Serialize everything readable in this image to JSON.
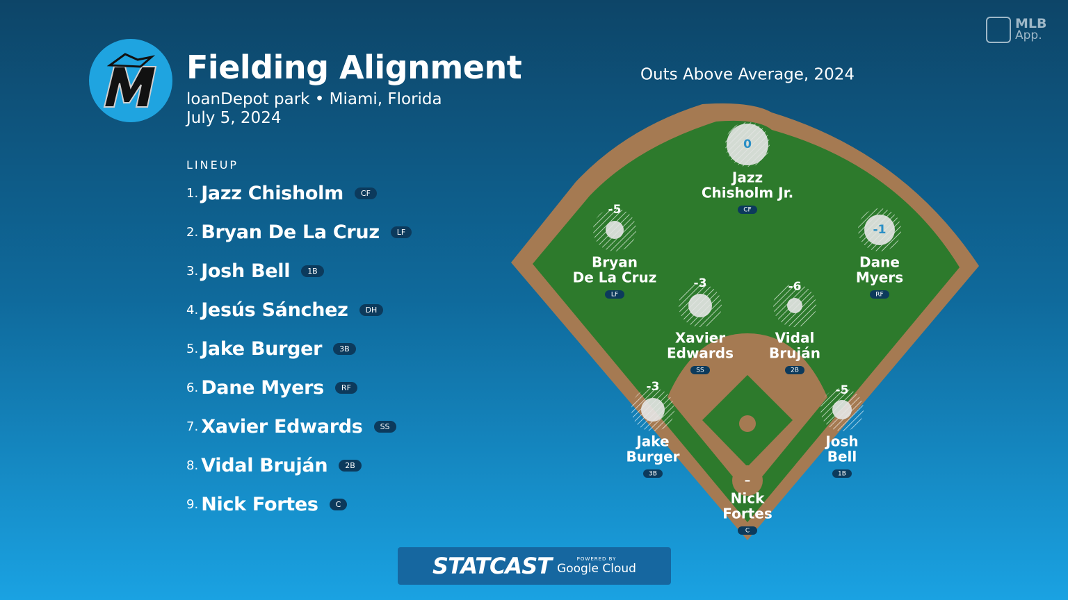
{
  "header": {
    "title": "Fielding Alignment",
    "venue": "loanDepot park • Miami, Florida",
    "date": "July 5, 2024"
  },
  "lineup": {
    "label": "LINEUP",
    "players": [
      {
        "number": "1.",
        "name": "Jazz Chisholm",
        "position": "CF"
      },
      {
        "number": "2.",
        "name": "Bryan De La Cruz",
        "position": "LF"
      },
      {
        "number": "3.",
        "name": "Josh Bell",
        "position": "1B"
      },
      {
        "number": "4.",
        "name": "Jesús Sánchez",
        "position": "DH"
      },
      {
        "number": "5.",
        "name": "Jake Burger",
        "position": "3B"
      },
      {
        "number": "6.",
        "name": "Dane Myers",
        "position": "RF"
      },
      {
        "number": "7.",
        "name": "Xavier Edwards",
        "position": "SS"
      },
      {
        "number": "8.",
        "name": "Vidal Bruján",
        "position": "2B"
      },
      {
        "number": "9.",
        "name": "Nick Fortes",
        "position": "C"
      }
    ]
  },
  "field": {
    "title": "Outs Above Average, 2024",
    "players": [
      {
        "value": "0",
        "name": [
          "Jazz",
          "Chisholm Jr."
        ],
        "position": "CF"
      },
      {
        "value": "-5",
        "name": [
          "Bryan",
          "De La Cruz"
        ],
        "position": "LF"
      },
      {
        "value": "-1",
        "name": [
          "Dane",
          "Myers"
        ],
        "position": "RF"
      },
      {
        "value": "-3",
        "name": [
          "Xavier",
          "Edwards"
        ],
        "position": "SS"
      },
      {
        "value": "-6",
        "name": [
          "Vidal",
          "Bruján"
        ],
        "position": "2B"
      },
      {
        "value": "-3",
        "name": [
          "Jake",
          "Burger"
        ],
        "position": "3B"
      },
      {
        "value": "-5",
        "name": [
          "Josh",
          "Bell"
        ],
        "position": "1B"
      },
      {
        "value": "–",
        "name": [
          "Nick",
          "Fortes"
        ],
        "position": "C"
      }
    ]
  },
  "branding": {
    "app": [
      "MLB",
      "App."
    ],
    "statcast": "STATCAST",
    "powered_by": "POWERED BY",
    "cloud": "Google Cloud"
  }
}
